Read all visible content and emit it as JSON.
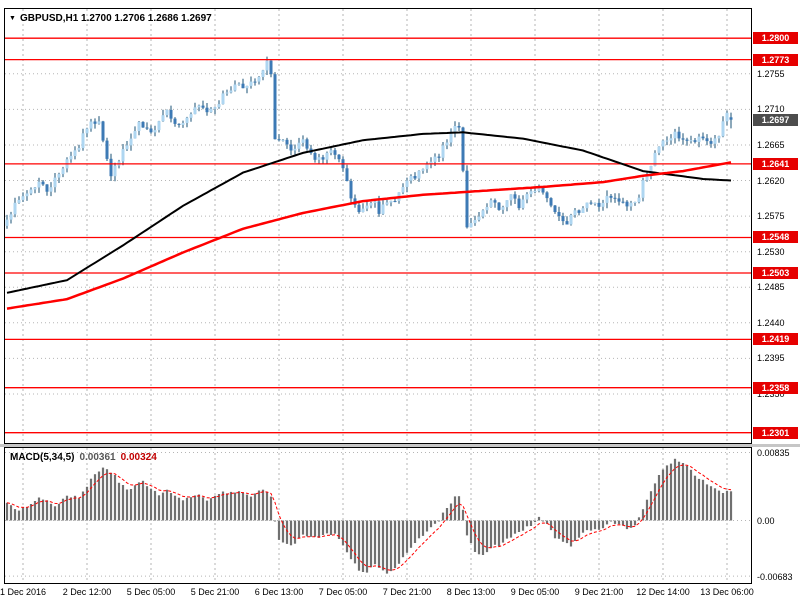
{
  "window": {
    "ohlc_icon": "▼",
    "ohlc_label": "GBPUSD,H1 1.2700 1.2706 1.2686 1.2697",
    "symbol": "GBPUSD",
    "timeframe": "H1"
  },
  "price_axis": {
    "ticks": [
      "1.2755",
      "1.2710",
      "1.2665",
      "1.2620",
      "1.2575",
      "1.2530",
      "1.2485",
      "1.2440",
      "1.2395",
      "1.2350"
    ],
    "current_price": "1.2697",
    "level_labels": [
      "1.2800",
      "1.2773",
      "1.2641",
      "1.2548",
      "1.2503",
      "1.2419",
      "1.2358",
      "1.2301"
    ]
  },
  "macd_axis": {
    "ticks": [
      {
        "label": "0.00835",
        "value": 0.00835
      },
      {
        "label": "0.00",
        "value": 0
      },
      {
        "label": "-0.00683",
        "value": -0.00683
      }
    ]
  },
  "time_axis": {
    "labels": [
      "1 Dec 2016",
      "2 Dec 12:00",
      "5 Dec 05:00",
      "5 Dec 21:00",
      "6 Dec 13:00",
      "7 Dec 05:00",
      "7 Dec 21:00",
      "8 Dec 13:00",
      "9 Dec 05:00",
      "9 Dec 21:00",
      "12 Dec 14:00",
      "13 Dec 06:00"
    ],
    "bar_indices": [
      4,
      20,
      36,
      52,
      68,
      84,
      100,
      116,
      132,
      148,
      164,
      180
    ]
  },
  "colors": {
    "bull": "#aed6f1",
    "bear": "#3d7ab5",
    "wick": "#1a5276",
    "ma_slow": "#000000",
    "ma_fast": "#ff0000",
    "level": "#ff0000",
    "level_box": "#e60000",
    "current_box": "#4d4d4d",
    "grid": "#b5b5b5",
    "hist": "#707070",
    "signal": "#ff0000"
  },
  "chart_data": [
    {
      "type": "candlestick",
      "title": "GBPUSD,H1",
      "bars": 182,
      "ylim": [
        1.2288,
        1.2837
      ],
      "y_tick_labels": [
        "1.2755",
        "1.2710",
        "1.2665",
        "1.2620",
        "1.2575",
        "1.2530",
        "1.2485",
        "1.2440",
        "1.2395",
        "1.2350"
      ],
      "x_tick_labels": [
        "1 Dec 2016",
        "2 Dec 12:00",
        "5 Dec 05:00",
        "5 Dec 21:00",
        "6 Dec 13:00",
        "7 Dec 05:00",
        "7 Dec 21:00",
        "8 Dec 13:00",
        "9 Dec 05:00",
        "9 Dec 21:00",
        "12 Dec 14:00",
        "13 Dec 06:00"
      ],
      "levels": [
        1.28,
        1.2773,
        1.2641,
        1.2548,
        1.2503,
        1.2419,
        1.2358,
        1.2301
      ],
      "last_bar": {
        "open": 1.27,
        "high": 1.2706,
        "low": 1.2686,
        "close": 1.2697
      },
      "close_anchors": [
        [
          0,
          1.2575
        ],
        [
          4,
          1.26
        ],
        [
          8,
          1.2618
        ],
        [
          10,
          1.2608
        ],
        [
          13,
          1.2628
        ],
        [
          15,
          1.2648
        ],
        [
          18,
          1.2663
        ],
        [
          20,
          1.2688
        ],
        [
          23,
          1.2698
        ],
        [
          26,
          1.2625
        ],
        [
          28,
          1.2648
        ],
        [
          31,
          1.2672
        ],
        [
          33,
          1.269
        ],
        [
          36,
          1.2678
        ],
        [
          38,
          1.2698
        ],
        [
          40,
          1.271
        ],
        [
          43,
          1.2688
        ],
        [
          45,
          1.27
        ],
        [
          48,
          1.2713
        ],
        [
          50,
          1.2708
        ],
        [
          53,
          1.272
        ],
        [
          55,
          1.2733
        ],
        [
          58,
          1.2744
        ],
        [
          60,
          1.2738
        ],
        [
          63,
          1.2748
        ],
        [
          65,
          1.2768
        ],
        [
          66,
          1.2758
        ],
        [
          67,
          1.2672
        ],
        [
          69,
          1.2668
        ],
        [
          71,
          1.2655
        ],
        [
          74,
          1.2668
        ],
        [
          76,
          1.2652
        ],
        [
          79,
          1.2648
        ],
        [
          81,
          1.2658
        ],
        [
          84,
          1.2635
        ],
        [
          86,
          1.2598
        ],
        [
          88,
          1.2578
        ],
        [
          90,
          1.259
        ],
        [
          92,
          1.2598
        ],
        [
          93,
          1.2582
        ],
        [
          96,
          1.2593
        ],
        [
          98,
          1.2604
        ],
        [
          100,
          1.2618
        ],
        [
          103,
          1.2628
        ],
        [
          105,
          1.2638
        ],
        [
          108,
          1.2652
        ],
        [
          110,
          1.2668
        ],
        [
          112,
          1.2692
        ],
        [
          113,
          1.2688
        ],
        [
          114,
          1.2635
        ],
        [
          115,
          1.2558
        ],
        [
          117,
          1.2568
        ],
        [
          119,
          1.2578
        ],
        [
          121,
          1.2593
        ],
        [
          123,
          1.2583
        ],
        [
          126,
          1.26
        ],
        [
          128,
          1.2588
        ],
        [
          130,
          1.2603
        ],
        [
          133,
          1.2613
        ],
        [
          135,
          1.2598
        ],
        [
          138,
          1.2578
        ],
        [
          140,
          1.2568
        ],
        [
          143,
          1.2583
        ],
        [
          145,
          1.2593
        ],
        [
          148,
          1.2588
        ],
        [
          150,
          1.2598
        ],
        [
          153,
          1.2593
        ],
        [
          155,
          1.2588
        ],
        [
          158,
          1.2598
        ],
        [
          159,
          1.2618
        ],
        [
          162,
          1.2652
        ],
        [
          164,
          1.2668
        ],
        [
          167,
          1.2678
        ],
        [
          169,
          1.2673
        ],
        [
          171,
          1.2668
        ],
        [
          174,
          1.2673
        ],
        [
          176,
          1.2668
        ],
        [
          178,
          1.2678
        ],
        [
          180,
          1.2705
        ],
        [
          181,
          1.2697
        ]
      ],
      "ma_slow_anchors": [
        [
          0,
          1.2478
        ],
        [
          15,
          1.2494
        ],
        [
          29,
          1.2538
        ],
        [
          44,
          1.2588
        ],
        [
          59,
          1.263
        ],
        [
          74,
          1.2655
        ],
        [
          89,
          1.2671
        ],
        [
          104,
          1.2679
        ],
        [
          114,
          1.2681
        ],
        [
          129,
          1.2673
        ],
        [
          144,
          1.2658
        ],
        [
          159,
          1.2632
        ],
        [
          174,
          1.2622
        ],
        [
          181,
          1.262
        ]
      ],
      "ma_fast_anchors": [
        [
          0,
          1.2458
        ],
        [
          15,
          1.247
        ],
        [
          29,
          1.2496
        ],
        [
          44,
          1.2529
        ],
        [
          59,
          1.2559
        ],
        [
          74,
          1.2579
        ],
        [
          89,
          1.2594
        ],
        [
          104,
          1.2602
        ],
        [
          119,
          1.2607
        ],
        [
          134,
          1.2612
        ],
        [
          149,
          1.2618
        ],
        [
          159,
          1.2626
        ],
        [
          169,
          1.2632
        ],
        [
          181,
          1.2643
        ]
      ]
    },
    {
      "type": "bar",
      "title": "MACD(5,34,5)",
      "values": [
        "0.00361",
        "0.00324"
      ],
      "ylim": [
        -0.00768,
        0.0089
      ],
      "axis_tick_labels": [
        "0.00835",
        "0.00",
        "-0.00683"
      ],
      "signal_period": 5,
      "histogram_anchors": [
        [
          0,
          0.0022
        ],
        [
          2,
          0.0012
        ],
        [
          4,
          0.0015
        ],
        [
          6,
          0.002
        ],
        [
          8,
          0.0028
        ],
        [
          10,
          0.0024
        ],
        [
          12,
          0.0016
        ],
        [
          14,
          0.0028
        ],
        [
          16,
          0.003
        ],
        [
          18,
          0.0028
        ],
        [
          20,
          0.0042
        ],
        [
          22,
          0.0058
        ],
        [
          24,
          0.0065
        ],
        [
          26,
          0.006
        ],
        [
          28,
          0.0048
        ],
        [
          30,
          0.0038
        ],
        [
          32,
          0.0042
        ],
        [
          34,
          0.0048
        ],
        [
          36,
          0.004
        ],
        [
          38,
          0.0032
        ],
        [
          40,
          0.0038
        ],
        [
          42,
          0.0032
        ],
        [
          44,
          0.0024
        ],
        [
          46,
          0.0028
        ],
        [
          48,
          0.0032
        ],
        [
          50,
          0.0026
        ],
        [
          52,
          0.003
        ],
        [
          54,
          0.0034
        ],
        [
          56,
          0.0036
        ],
        [
          58,
          0.0036
        ],
        [
          60,
          0.003
        ],
        [
          62,
          0.0032
        ],
        [
          64,
          0.0038
        ],
        [
          66,
          0.0028
        ],
        [
          67,
          0.0
        ],
        [
          68,
          -0.0022
        ],
        [
          70,
          -0.003
        ],
        [
          72,
          -0.0028
        ],
        [
          74,
          -0.0018
        ],
        [
          76,
          -0.002
        ],
        [
          78,
          -0.0022
        ],
        [
          80,
          -0.0015
        ],
        [
          82,
          -0.0018
        ],
        [
          84,
          -0.003
        ],
        [
          86,
          -0.0048
        ],
        [
          88,
          -0.006
        ],
        [
          90,
          -0.0063
        ],
        [
          92,
          -0.0055
        ],
        [
          93,
          -0.006
        ],
        [
          95,
          -0.0065
        ],
        [
          97,
          -0.0058
        ],
        [
          99,
          -0.0045
        ],
        [
          101,
          -0.0032
        ],
        [
          103,
          -0.0022
        ],
        [
          105,
          -0.0014
        ],
        [
          107,
          -0.0006
        ],
        [
          109,
          0.0008
        ],
        [
          111,
          0.002
        ],
        [
          112,
          0.0028
        ],
        [
          113,
          0.003
        ],
        [
          114,
          0.0012
        ],
        [
          115,
          -0.002
        ],
        [
          117,
          -0.0038
        ],
        [
          119,
          -0.0042
        ],
        [
          121,
          -0.0032
        ],
        [
          123,
          -0.003
        ],
        [
          125,
          -0.0022
        ],
        [
          127,
          -0.0018
        ],
        [
          129,
          -0.0012
        ],
        [
          131,
          -0.0006
        ],
        [
          133,
          0.0004
        ],
        [
          135,
          -0.0006
        ],
        [
          137,
          -0.002
        ],
        [
          139,
          -0.0028
        ],
        [
          141,
          -0.003
        ],
        [
          143,
          -0.002
        ],
        [
          145,
          -0.001
        ],
        [
          147,
          -0.0012
        ],
        [
          149,
          -0.0008
        ],
        [
          151,
          -0.0002
        ],
        [
          153,
          -0.0006
        ],
        [
          155,
          -0.001
        ],
        [
          157,
          -0.0004
        ],
        [
          159,
          0.0012
        ],
        [
          161,
          0.0036
        ],
        [
          163,
          0.0055
        ],
        [
          165,
          0.0068
        ],
        [
          167,
          0.0075
        ],
        [
          169,
          0.0072
        ],
        [
          171,
          0.0062
        ],
        [
          173,
          0.0052
        ],
        [
          175,
          0.0044
        ],
        [
          177,
          0.0038
        ],
        [
          179,
          0.0034
        ],
        [
          181,
          0.0036
        ]
      ]
    }
  ]
}
